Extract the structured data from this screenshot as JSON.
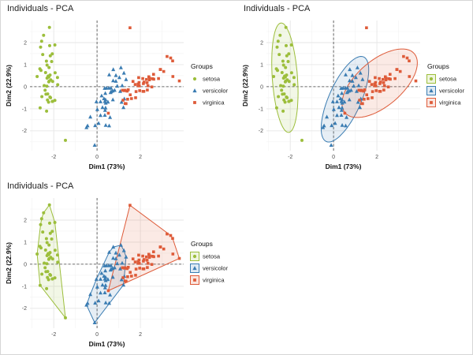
{
  "figure": {
    "background": "#ffffff",
    "border_color": "#d6d6d6"
  },
  "chart_data": {
    "type": "scatter",
    "title": "Individuals - PCA",
    "xlabel": "Dim1 (73%)",
    "ylabel": "Dim2 (22.9%)",
    "legend_title": "Groups",
    "legend_position": "right",
    "grid": true,
    "ref_lines": {
      "x": 0,
      "y": 0,
      "style": "dashed"
    },
    "xlim": [
      -3.1,
      4.0
    ],
    "ylim": [
      -2.9,
      3.0
    ],
    "xticks": [
      -2,
      0,
      2
    ],
    "yticks": [
      -2,
      -1,
      0,
      1,
      2
    ],
    "panels": [
      {
        "name": "scatter-points",
        "overlay": "none"
      },
      {
        "name": "concentration-ellipses",
        "overlay": "ellipse",
        "ellipse_level": 0.95
      },
      {
        "name": "convex-hulls",
        "overlay": "hull"
      }
    ],
    "series": [
      {
        "name": "setosa",
        "marker": "circle",
        "color": "#9CBE3B",
        "points": [
          [
            -2.26,
            0.48
          ],
          [
            -2.07,
            -0.67
          ],
          [
            -2.36,
            -0.34
          ],
          [
            -2.29,
            -0.6
          ],
          [
            -2.38,
            0.64
          ],
          [
            -2.07,
            1.49
          ],
          [
            -2.44,
            0.05
          ],
          [
            -2.23,
            0.22
          ],
          [
            -2.33,
            -1.11
          ],
          [
            -2.18,
            -0.47
          ],
          [
            -2.16,
            1.4
          ],
          [
            -2.32,
            0.02
          ],
          [
            -2.24,
            -0.7
          ],
          [
            -2.63,
            -0.96
          ],
          [
            -2.19,
            1.86
          ],
          [
            -2.2,
            2.69
          ],
          [
            -2.51,
            1.46
          ],
          [
            -2.25,
            0.48
          ],
          [
            -1.95,
            1.89
          ],
          [
            -2.34,
            1.16
          ],
          [
            -1.94,
            0.63
          ],
          [
            -2.31,
            0.98
          ],
          [
            -2.77,
            0.46
          ],
          [
            -1.82,
            0.09
          ],
          [
            -2.23,
            0.44
          ],
          [
            -1.95,
            -0.62
          ],
          [
            -2.05,
            0.24
          ],
          [
            -2.17,
            0.53
          ],
          [
            -2.14,
            0.31
          ],
          [
            -2.28,
            -0.33
          ],
          [
            -2.15,
            -0.5
          ],
          [
            -1.83,
            0.42
          ],
          [
            -2.61,
            1.79
          ],
          [
            -2.56,
            2.06
          ],
          [
            -2.21,
            0.25
          ],
          [
            -2.05,
            -0.66
          ],
          [
            -2.47,
            2.33
          ],
          [
            -2.59,
            0.74
          ],
          [
            -2.4,
            -0.16
          ],
          [
            -2.64,
            0.81
          ],
          [
            -2.22,
            0.87
          ],
          [
            -1.46,
            -2.43
          ],
          [
            -2.55,
            -0.45
          ],
          [
            -2.1,
            1.14
          ],
          [
            -2.31,
            0.39
          ]
        ]
      },
      {
        "name": "versicolor",
        "marker": "triangle",
        "color": "#3A7CB2",
        "points": [
          [
            1.1,
            0.86
          ],
          [
            0.73,
            -0.59
          ],
          [
            1.24,
            0.62
          ],
          [
            0.4,
            -1.75
          ],
          [
            1.07,
            -0.21
          ],
          [
            0.39,
            -0.59
          ],
          [
            0.75,
            0.78
          ],
          [
            -0.49,
            -1.85
          ],
          [
            0.93,
            0.03
          ],
          [
            0.01,
            -1.03
          ],
          [
            -0.11,
            -2.65
          ],
          [
            0.44,
            -0.06
          ],
          [
            0.56,
            -1.77
          ],
          [
            0.72,
            -0.19
          ],
          [
            -0.03,
            -0.68
          ],
          [
            0.87,
            0.51
          ],
          [
            0.35,
            -0.07
          ],
          [
            0.16,
            -0.68
          ],
          [
            1.22,
            -0.94
          ],
          [
            0.16,
            -1.3
          ],
          [
            0.74,
            0.27
          ],
          [
            0.5,
            -0.69
          ],
          [
            1.26,
            -0.55
          ],
          [
            0.55,
            -0.06
          ],
          [
            0.65,
            -0.22
          ],
          [
            0.87,
            0.25
          ],
          [
            1.16,
            0.05
          ],
          [
            1.34,
            0.33
          ],
          [
            0.81,
            -0.16
          ],
          [
            -0.31,
            -1.37
          ],
          [
            0.07,
            -1.66
          ],
          [
            -0.09,
            -1.76
          ],
          [
            0.25,
            -0.94
          ],
          [
            1.13,
            -0.7
          ],
          [
            0.36,
            -0.67
          ],
          [
            0.56,
            0.54
          ],
          [
            1.03,
            0.42
          ],
          [
            0.6,
            -1.39
          ],
          [
            0.21,
            -0.41
          ],
          [
            0.36,
            -1.29
          ],
          [
            0.37,
            -1.07
          ],
          [
            0.64,
            -0.06
          ],
          [
            0.4,
            -0.74
          ],
          [
            -0.44,
            -1.77
          ],
          [
            0.39,
            -0.96
          ],
          [
            0.32,
            -0.54
          ],
          [
            0.38,
            -0.3
          ],
          [
            0.62,
            -0.26
          ]
        ]
      },
      {
        "name": "virginica",
        "marker": "square",
        "color": "#DE5B39",
        "points": [
          [
            2.53,
            -0.01
          ],
          [
            1.41,
            -0.57
          ],
          [
            2.62,
            0.34
          ],
          [
            1.97,
            -0.18
          ],
          [
            2.35,
            0.04
          ],
          [
            3.4,
            1.3
          ],
          [
            0.52,
            -1.2
          ],
          [
            2.93,
            0.78
          ],
          [
            2.32,
            -0.15
          ],
          [
            2.92,
            0.78
          ],
          [
            1.66,
            0.24
          ],
          [
            1.8,
            -0.22
          ],
          [
            2.17,
            0.21
          ],
          [
            1.34,
            -0.77
          ],
          [
            1.59,
            -0.54
          ],
          [
            1.9,
            0.12
          ],
          [
            1.95,
            0.04
          ],
          [
            3.49,
            1.17
          ],
          [
            3.8,
            0.26
          ],
          [
            1.3,
            -0.76
          ],
          [
            2.43,
            0.38
          ],
          [
            1.2,
            -0.61
          ],
          [
            3.5,
            0.46
          ],
          [
            1.39,
            -0.2
          ],
          [
            2.28,
            0.33
          ],
          [
            2.61,
            0.56
          ],
          [
            1.26,
            -0.18
          ],
          [
            1.29,
            -0.16
          ],
          [
            2.12,
            -0.21
          ],
          [
            2.39,
            0.45
          ],
          [
            2.84,
            0.37
          ],
          [
            3.23,
            1.37
          ],
          [
            2.16,
            -0.21
          ],
          [
            1.44,
            -0.14
          ],
          [
            1.78,
            -0.5
          ],
          [
            3.08,
            0.69
          ],
          [
            2.14,
            0.14
          ],
          [
            1.9,
            0.04
          ],
          [
            1.17,
            -0.16
          ],
          [
            2.11,
            0.37
          ],
          [
            2.31,
            0.18
          ],
          [
            1.92,
            0.41
          ],
          [
            1.52,
            2.67
          ],
          [
            2.56,
            0.36
          ],
          [
            2.42,
            0.31
          ],
          [
            1.94,
            0.19
          ],
          [
            1.53,
            -0.37
          ],
          [
            1.76,
            0.1
          ]
        ]
      }
    ],
    "style": {
      "grid_major_color": "#e6e6e6",
      "grid_minor_color": "#f2f2f2",
      "ref_line_color": "#404040",
      "tick_label_color": "#4d4d4d",
      "axis_title_color": "#111111",
      "fill_alpha": 0.13
    }
  }
}
